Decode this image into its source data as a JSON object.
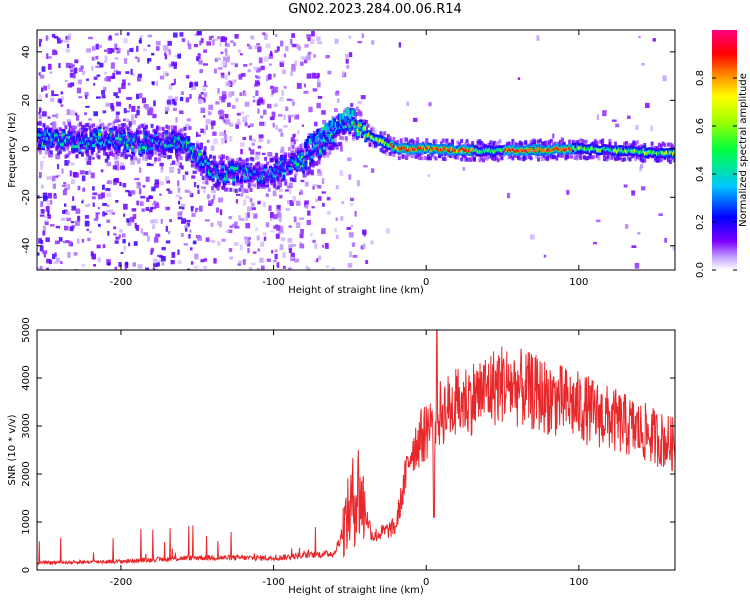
{
  "title": "GN02.2023.284.00.06.R14",
  "chart_data": [
    {
      "type": "heatmap",
      "xlabel": "Height of straight line (km)",
      "ylabel": "Frequency (Hz)",
      "xlim": [
        -255,
        163
      ],
      "ylim": [
        -50,
        49
      ],
      "xticks": [
        -200,
        -100,
        0,
        100
      ],
      "yticks": [
        -40,
        -20,
        0,
        20,
        40
      ],
      "colorbar": {
        "label": "Normalized spectral amplitude",
        "range": [
          0,
          1
        ],
        "ticks": [
          0.0,
          0.2,
          0.4,
          0.6,
          0.8
        ],
        "colormap": "rainbow (white → purple → blue → cyan → green → yellow → red → magenta)"
      },
      "ridge": [
        {
          "x": -250,
          "f": 4
        },
        {
          "x": -200,
          "f": 3
        },
        {
          "x": -160,
          "f": 2
        },
        {
          "x": -140,
          "f": -10
        },
        {
          "x": -105,
          "f": -11
        },
        {
          "x": -80,
          "f": -4
        },
        {
          "x": -60,
          "f": 6
        },
        {
          "x": -50,
          "f": 12
        },
        {
          "x": -40,
          "f": 6
        },
        {
          "x": -20,
          "f": 0
        },
        {
          "x": 0,
          "f": 0
        },
        {
          "x": 40,
          "f": -1
        },
        {
          "x": 100,
          "f": 0
        },
        {
          "x": 163,
          "f": -2
        }
      ]
    },
    {
      "type": "line",
      "xlabel": "Height of straight line (km)",
      "ylabel": "SNR (10 * v/v)",
      "xlim": [
        -255,
        163
      ],
      "ylim": [
        0,
        5000
      ],
      "xticks": [
        -200,
        -100,
        0,
        100
      ],
      "yticks": [
        0,
        1000,
        2000,
        3000,
        4000,
        5000
      ],
      "color": "#e8272a",
      "envelope": [
        {
          "x": -255,
          "y": 150
        },
        {
          "x": -200,
          "y": 180
        },
        {
          "x": -150,
          "y": 260
        },
        {
          "x": -100,
          "y": 250
        },
        {
          "x": -60,
          "y": 350
        },
        {
          "x": -45,
          "y": 1700
        },
        {
          "x": -35,
          "y": 700
        },
        {
          "x": -20,
          "y": 900
        },
        {
          "x": -10,
          "y": 2500
        },
        {
          "x": 10,
          "y": 3300
        },
        {
          "x": 50,
          "y": 3900
        },
        {
          "x": 100,
          "y": 3400
        },
        {
          "x": 140,
          "y": 2900
        },
        {
          "x": 163,
          "y": 2600
        }
      ]
    }
  ]
}
